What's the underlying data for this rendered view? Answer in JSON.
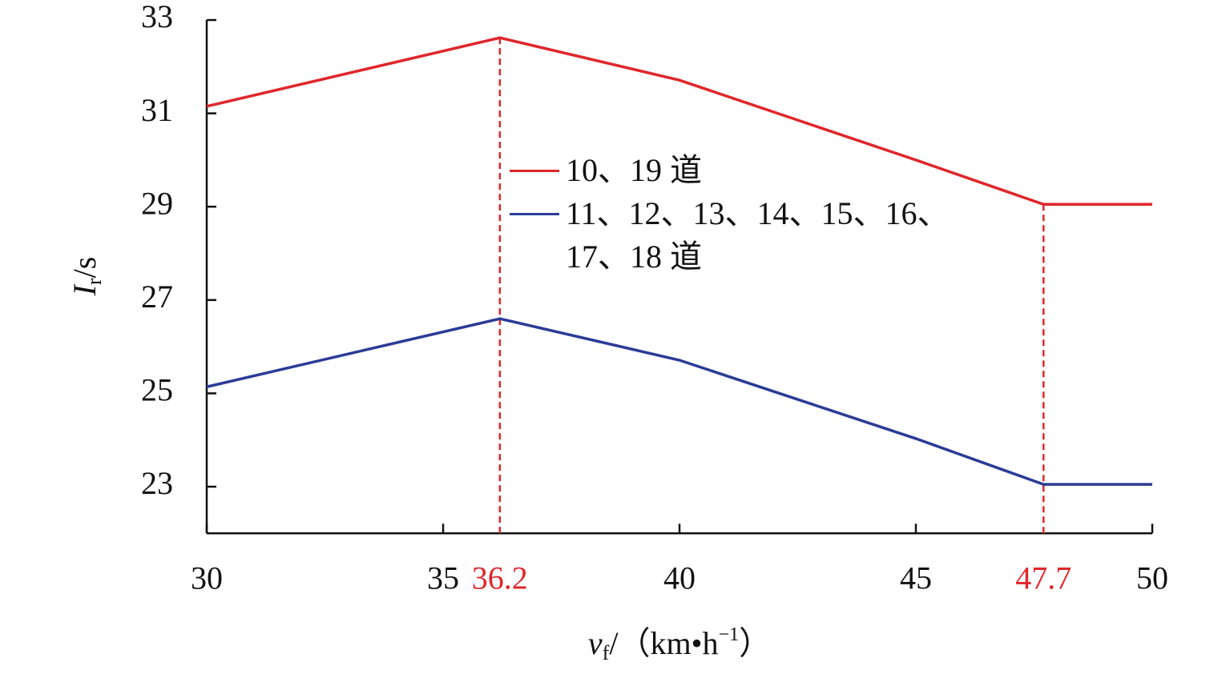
{
  "chart_data": {
    "type": "line",
    "x_label": [
      "v",
      "f",
      "/（km•h",
      "−1",
      "）"
    ],
    "y_label": [
      "I",
      "r",
      "/s"
    ],
    "x": [
      30,
      36.2,
      40,
      45,
      47.7,
      50
    ],
    "series": [
      {
        "name": "10、19 道",
        "color": "#e0262b",
        "values": [
          31.15,
          32.62,
          31.71,
          30.0,
          29.05,
          29.05
        ]
      },
      {
        "name": "11、12、13、14、15、16、17、18 道",
        "color": "#2b3c96",
        "values": [
          25.14,
          26.6,
          25.71,
          24.03,
          23.05,
          23.05
        ]
      }
    ],
    "xlim": [
      30,
      50
    ],
    "xticks": [
      30,
      35,
      40,
      45,
      50
    ],
    "ylim": [
      22,
      33
    ],
    "yticks": [
      23,
      25,
      27,
      29,
      31,
      33
    ],
    "marked_x": [
      36.2,
      47.7
    ],
    "marked_color": "#e0262b"
  }
}
